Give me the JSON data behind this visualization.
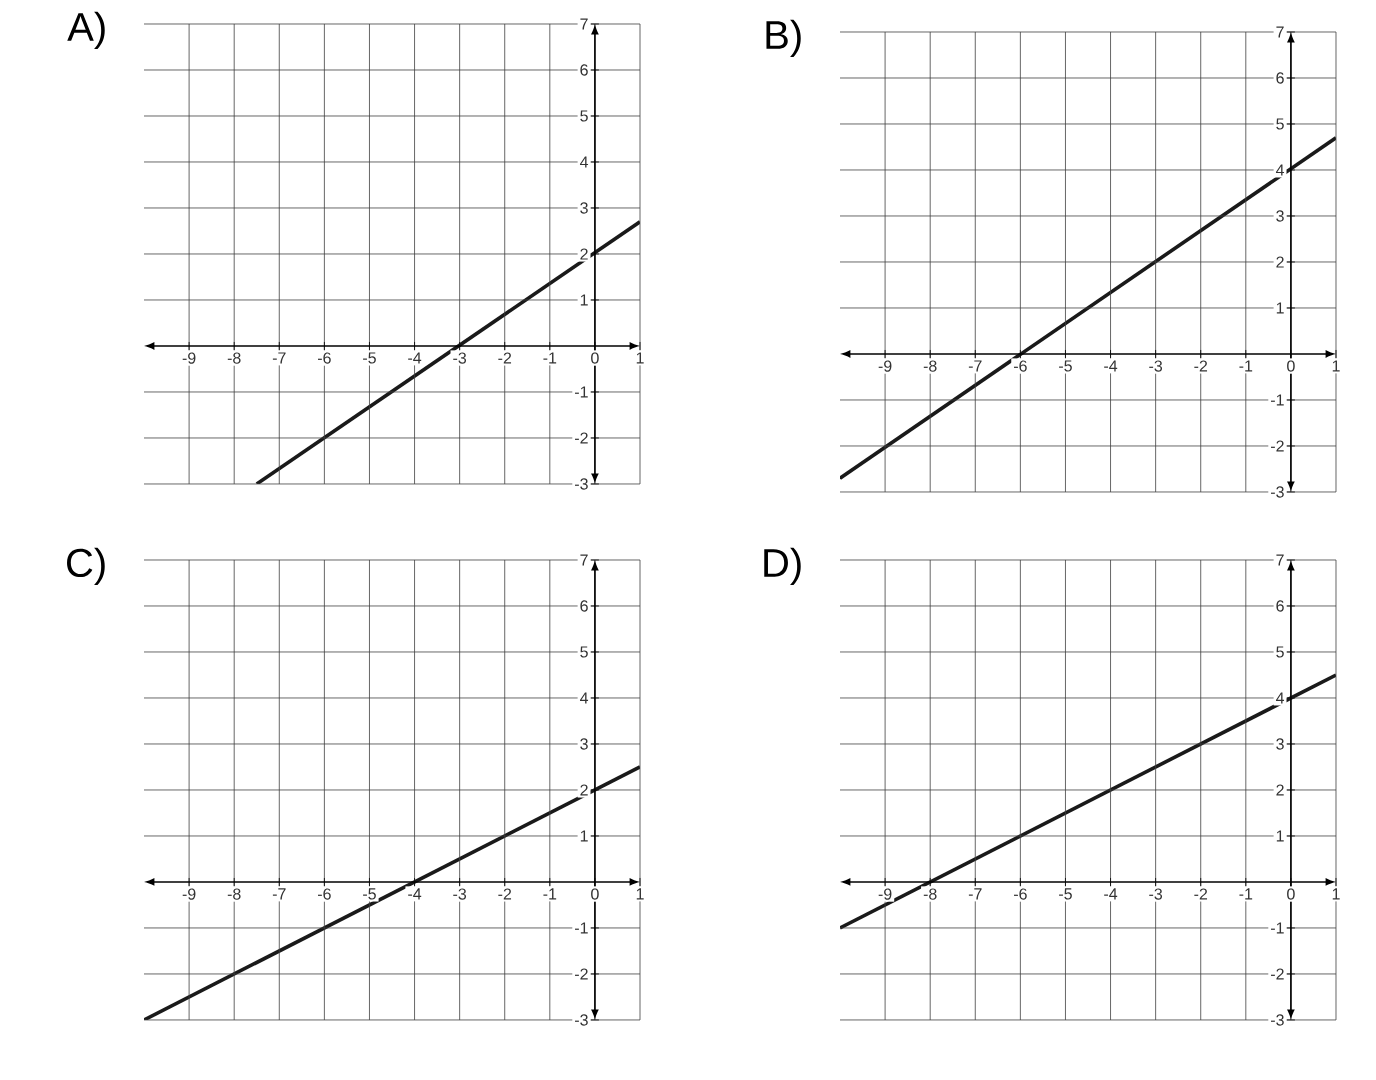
{
  "chart_data": [
    {
      "type": "line",
      "title": "A)",
      "xlim": [
        -10,
        1
      ],
      "ylim": [
        -3,
        7
      ],
      "xticks": [
        -9,
        -8,
        -7,
        -6,
        -5,
        -4,
        -3,
        -2,
        -1,
        0,
        1
      ],
      "yticks": [
        -3,
        -2,
        -1,
        1,
        2,
        3,
        4,
        5,
        6,
        7
      ],
      "grid": true,
      "series": [
        {
          "color": "#1a1a1a",
          "x": [
            -7.5,
            1
          ],
          "values": [
            -3,
            2.7
          ]
        }
      ]
    },
    {
      "type": "line",
      "title": "B)",
      "xlim": [
        -10,
        1
      ],
      "ylim": [
        -3,
        7
      ],
      "xticks": [
        -9,
        -8,
        -7,
        -6,
        -5,
        -4,
        -3,
        -2,
        -1,
        0,
        1
      ],
      "yticks": [
        -3,
        -2,
        -1,
        1,
        2,
        3,
        4,
        5,
        6,
        7
      ],
      "grid": true,
      "series": [
        {
          "color": "#1a1a1a",
          "x": [
            -10,
            1
          ],
          "values": [
            -2.7,
            4.7
          ]
        }
      ]
    },
    {
      "type": "line",
      "title": "C)",
      "xlim": [
        -10,
        1
      ],
      "ylim": [
        -3,
        7
      ],
      "xticks": [
        -9,
        -8,
        -7,
        -6,
        -5,
        -4,
        -3,
        -2,
        -1,
        0,
        1
      ],
      "yticks": [
        -3,
        -2,
        -1,
        1,
        2,
        3,
        4,
        5,
        6,
        7
      ],
      "grid": true,
      "series": [
        {
          "color": "#1a1a1a",
          "x": [
            -10,
            1
          ],
          "values": [
            -3,
            2.5
          ]
        }
      ]
    },
    {
      "type": "line",
      "title": "D)",
      "xlim": [
        -10,
        1
      ],
      "ylim": [
        -3,
        7
      ],
      "xticks": [
        -9,
        -8,
        -7,
        -6,
        -5,
        -4,
        -3,
        -2,
        -1,
        0,
        1
      ],
      "yticks": [
        -3,
        -2,
        -1,
        1,
        2,
        3,
        4,
        5,
        6,
        7
      ],
      "grid": true,
      "series": [
        {
          "color": "#1a1a1a",
          "x": [
            -10,
            1
          ],
          "values": [
            -1,
            4.5
          ]
        }
      ]
    }
  ]
}
